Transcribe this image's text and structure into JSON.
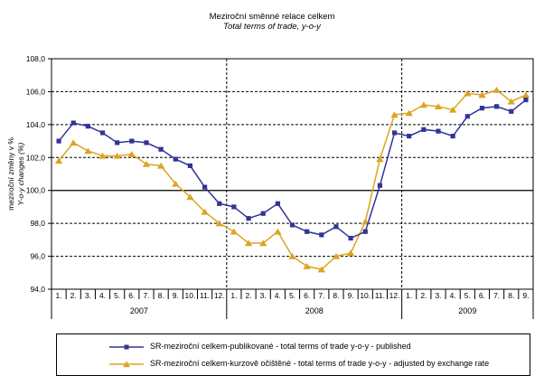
{
  "chart_data": {
    "type": "line",
    "title": "Meziroční směnné relace celkem",
    "subtitle": "Total terms of trade, y-o-y",
    "ylabel_line1": "meziroční změny v %",
    "ylabel_line2": "Y-o-y changes (%)",
    "ylim": [
      94,
      108
    ],
    "emphasis_gridline": 100,
    "grid": "horizontal dashed every 2 units, solid line at 100, vertical dashed lines at year boundaries",
    "legend_position": "bottom",
    "yticks": [
      {
        "value": 108,
        "label": "108,0"
      },
      {
        "value": 106,
        "label": "106,0"
      },
      {
        "value": 104,
        "label": "104,0"
      },
      {
        "value": 102,
        "label": "102,0"
      },
      {
        "value": 100,
        "label": "100,0"
      },
      {
        "value": 98,
        "label": "98,0"
      },
      {
        "value": 96,
        "label": "96,0"
      },
      {
        "value": 94,
        "label": "94,0"
      }
    ],
    "categories": [
      "1.",
      "2.",
      "3.",
      "4.",
      "5.",
      "6.",
      "7.",
      "8.",
      "9.",
      "10.",
      "11.",
      "12.",
      "1.",
      "2.",
      "3.",
      "4.",
      "5.",
      "6.",
      "7.",
      "8.",
      "9.",
      "10.",
      "11.",
      "12.",
      "1.",
      "2.",
      "3.",
      "4.",
      "5.",
      "6.",
      "7.",
      "8.",
      "9."
    ],
    "years": [
      {
        "label": "2007",
        "months": 12
      },
      {
        "label": "2008",
        "months": 12
      },
      {
        "label": "2009",
        "months": 9
      }
    ],
    "series": [
      {
        "name": "SR-meziroční celkem-publikované - total terms of trade y-o-y - published",
        "color": "#333399",
        "marker": "square",
        "values": [
          103.0,
          104.1,
          103.9,
          103.5,
          102.9,
          103.0,
          102.9,
          102.5,
          101.9,
          101.5,
          100.2,
          99.2,
          99.0,
          98.3,
          98.6,
          99.2,
          97.9,
          97.5,
          97.3,
          97.8,
          97.1,
          97.5,
          100.3,
          103.5,
          103.3,
          103.7,
          103.6,
          103.3,
          104.5,
          105.0,
          105.1,
          104.8,
          105.5
        ]
      },
      {
        "name": "SR-meziroční celkem-kurzově očištěné - total terms of trade y-o-y - adjusted by exchange rate",
        "color": "#DDA41F",
        "marker": "triangle",
        "values": [
          101.8,
          102.9,
          102.4,
          102.1,
          102.1,
          102.2,
          101.6,
          101.5,
          100.4,
          99.6,
          98.7,
          98.0,
          97.5,
          96.8,
          96.8,
          97.5,
          96.0,
          95.4,
          95.2,
          96.0,
          96.2,
          98.1,
          101.9,
          104.6,
          104.7,
          105.2,
          105.1,
          104.9,
          105.9,
          105.8,
          106.1,
          105.4,
          105.8
        ]
      }
    ]
  }
}
